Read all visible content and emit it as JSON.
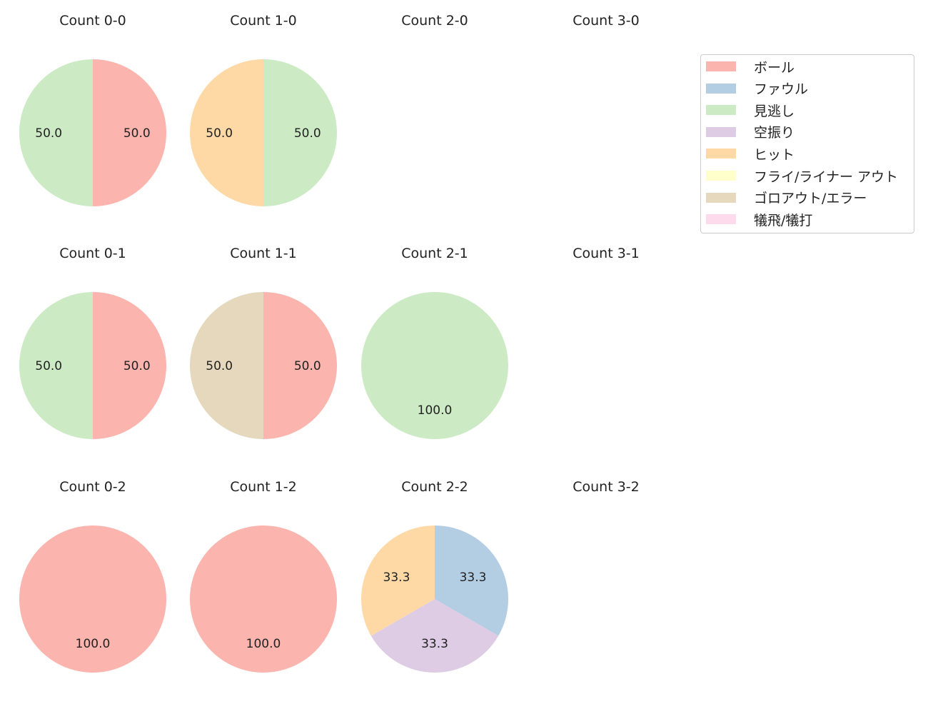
{
  "chart_data": {
    "type": "pie",
    "categories": [
      "ボール",
      "ファウル",
      "見逃し",
      "空振り",
      "ヒット",
      "フライ/ライナー アウト",
      "ゴロアウト/エラー",
      "犠飛/犠打"
    ],
    "colors": [
      "#fbb4ae",
      "#b3cde3",
      "#ccebc5",
      "#decbe4",
      "#fed9a6",
      "#ffffcc",
      "#e5d8bd",
      "#fddaec"
    ],
    "legend_placement": "top-right",
    "charts": [
      {
        "title": "Count 0-0",
        "slices": [
          {
            "category": 0,
            "value": 50.0
          },
          {
            "category": 2,
            "value": 50.0
          }
        ]
      },
      {
        "title": "Count 1-0",
        "slices": [
          {
            "category": 2,
            "value": 50.0
          },
          {
            "category": 4,
            "value": 50.0
          }
        ]
      },
      {
        "title": "Count 2-0",
        "slices": []
      },
      {
        "title": "Count 3-0",
        "slices": []
      },
      {
        "title": "Count 0-1",
        "slices": [
          {
            "category": 0,
            "value": 50.0
          },
          {
            "category": 2,
            "value": 50.0
          }
        ]
      },
      {
        "title": "Count 1-1",
        "slices": [
          {
            "category": 0,
            "value": 50.0
          },
          {
            "category": 6,
            "value": 50.0
          }
        ]
      },
      {
        "title": "Count 2-1",
        "slices": [
          {
            "category": 2,
            "value": 100.0
          }
        ]
      },
      {
        "title": "Count 3-1",
        "slices": []
      },
      {
        "title": "Count 0-2",
        "slices": [
          {
            "category": 0,
            "value": 100.0
          }
        ]
      },
      {
        "title": "Count 1-2",
        "slices": [
          {
            "category": 0,
            "value": 100.0
          }
        ]
      },
      {
        "title": "Count 2-2",
        "slices": [
          {
            "category": 1,
            "value": 33.3
          },
          {
            "category": 3,
            "value": 33.3
          },
          {
            "category": 4,
            "value": 33.3
          }
        ]
      },
      {
        "title": "Count 3-2",
        "slices": []
      }
    ]
  }
}
